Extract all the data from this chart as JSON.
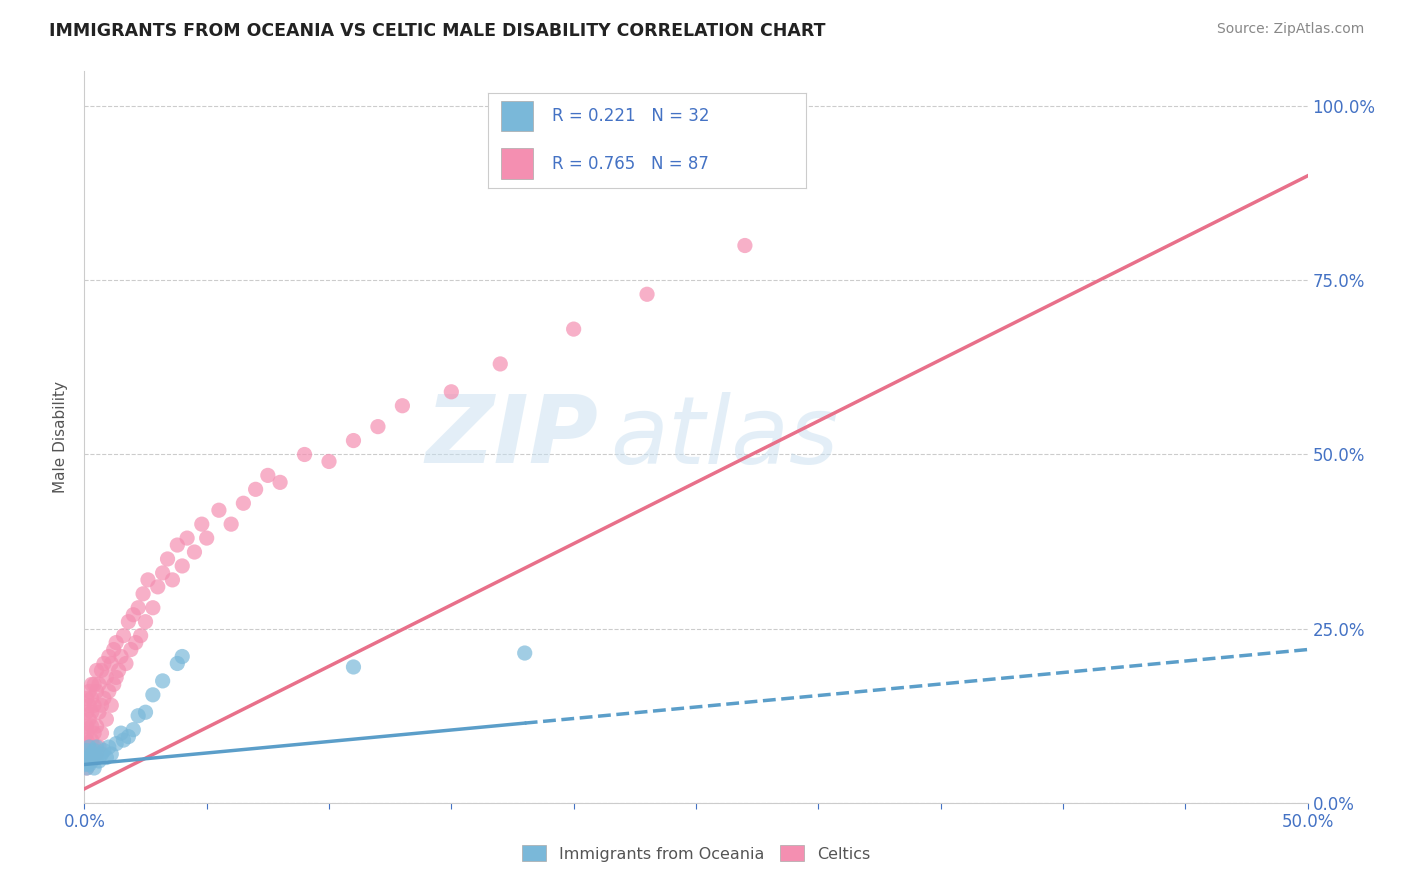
{
  "title": "IMMIGRANTS FROM OCEANIA VS CELTIC MALE DISABILITY CORRELATION CHART",
  "source": "Source: ZipAtlas.com",
  "ylabel": "Male Disability",
  "legend_bottom": [
    "Immigrants from Oceania",
    "Celtics"
  ],
  "legend_top_r1": "R = 0.221   N = 32",
  "legend_top_r2": "R = 0.765   N = 87",
  "oceania_color": "#7ab8d9",
  "celtics_color": "#f48fb1",
  "oceania_line_color": "#5b9ec9",
  "celtics_line_color": "#e8708a",
  "background_color": "#ffffff",
  "watermark_text": "ZIPatlas",
  "xlim": [
    0.0,
    0.5
  ],
  "ylim": [
    0.0,
    1.05
  ],
  "x_ticks": [
    0.0,
    0.05,
    0.1,
    0.15,
    0.2,
    0.25,
    0.3,
    0.35,
    0.4,
    0.45,
    0.5
  ],
  "y_tick_vals": [
    0.0,
    0.25,
    0.5,
    0.75,
    1.0
  ],
  "oceania_scatter_x": [
    0.0,
    0.001,
    0.001,
    0.001,
    0.002,
    0.002,
    0.002,
    0.003,
    0.003,
    0.004,
    0.004,
    0.005,
    0.005,
    0.006,
    0.007,
    0.008,
    0.009,
    0.01,
    0.011,
    0.013,
    0.015,
    0.016,
    0.018,
    0.02,
    0.022,
    0.025,
    0.028,
    0.032,
    0.038,
    0.04,
    0.11,
    0.18
  ],
  "oceania_scatter_y": [
    0.055,
    0.06,
    0.075,
    0.05,
    0.065,
    0.08,
    0.055,
    0.07,
    0.06,
    0.075,
    0.05,
    0.065,
    0.08,
    0.06,
    0.07,
    0.075,
    0.065,
    0.08,
    0.07,
    0.085,
    0.1,
    0.09,
    0.095,
    0.105,
    0.125,
    0.13,
    0.155,
    0.175,
    0.2,
    0.21,
    0.195,
    0.215
  ],
  "celtics_scatter_x": [
    0.0,
    0.0,
    0.001,
    0.001,
    0.001,
    0.001,
    0.001,
    0.001,
    0.001,
    0.001,
    0.002,
    0.002,
    0.002,
    0.002,
    0.002,
    0.003,
    0.003,
    0.003,
    0.003,
    0.003,
    0.003,
    0.004,
    0.004,
    0.004,
    0.004,
    0.005,
    0.005,
    0.005,
    0.005,
    0.006,
    0.006,
    0.006,
    0.007,
    0.007,
    0.007,
    0.008,
    0.008,
    0.009,
    0.009,
    0.01,
    0.01,
    0.011,
    0.011,
    0.012,
    0.012,
    0.013,
    0.013,
    0.014,
    0.015,
    0.016,
    0.017,
    0.018,
    0.019,
    0.02,
    0.021,
    0.022,
    0.023,
    0.024,
    0.025,
    0.026,
    0.028,
    0.03,
    0.032,
    0.034,
    0.036,
    0.038,
    0.04,
    0.042,
    0.045,
    0.048,
    0.05,
    0.055,
    0.06,
    0.065,
    0.07,
    0.075,
    0.08,
    0.09,
    0.1,
    0.11,
    0.12,
    0.13,
    0.15,
    0.17,
    0.2,
    0.23,
    0.27
  ],
  "celtics_scatter_y": [
    0.06,
    0.08,
    0.05,
    0.07,
    0.09,
    0.11,
    0.13,
    0.15,
    0.06,
    0.1,
    0.08,
    0.12,
    0.14,
    0.16,
    0.07,
    0.09,
    0.13,
    0.15,
    0.17,
    0.06,
    0.11,
    0.1,
    0.14,
    0.17,
    0.08,
    0.11,
    0.16,
    0.19,
    0.07,
    0.13,
    0.17,
    0.08,
    0.14,
    0.19,
    0.1,
    0.15,
    0.2,
    0.12,
    0.18,
    0.16,
    0.21,
    0.14,
    0.2,
    0.17,
    0.22,
    0.18,
    0.23,
    0.19,
    0.21,
    0.24,
    0.2,
    0.26,
    0.22,
    0.27,
    0.23,
    0.28,
    0.24,
    0.3,
    0.26,
    0.32,
    0.28,
    0.31,
    0.33,
    0.35,
    0.32,
    0.37,
    0.34,
    0.38,
    0.36,
    0.4,
    0.38,
    0.42,
    0.4,
    0.43,
    0.45,
    0.47,
    0.46,
    0.5,
    0.49,
    0.52,
    0.54,
    0.57,
    0.59,
    0.63,
    0.68,
    0.73,
    0.8
  ],
  "celtics_line_y_at_0": 0.02,
  "celtics_line_y_at_05": 0.9,
  "oceania_line_y_at_0": 0.055,
  "oceania_line_y_at_05": 0.22
}
